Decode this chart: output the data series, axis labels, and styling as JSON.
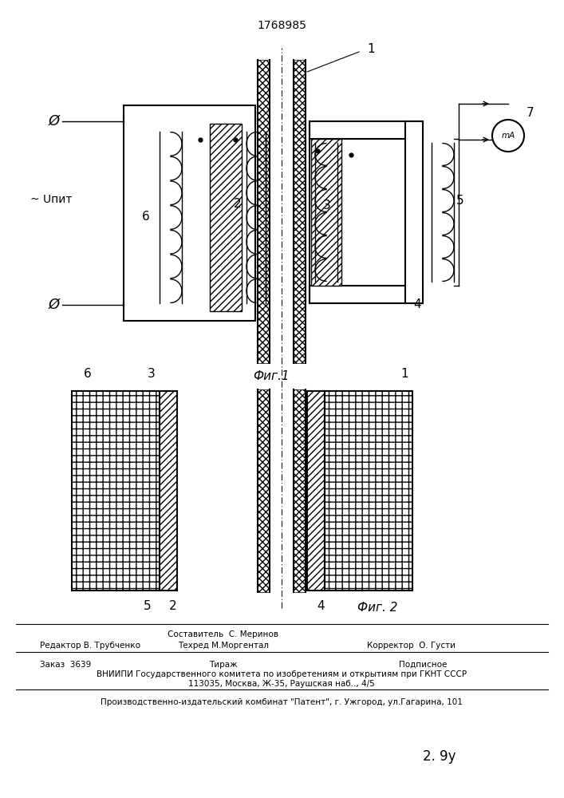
{
  "patent_number": "1768985",
  "fig1_caption": "Фиг.1",
  "fig2_caption": "Фиг. 2",
  "background_color": "#ffffff",
  "line_color": "#000000",
  "volt_label": "~ Uпит",
  "phi_label": "Ø",
  "footer_line1": "Составитель  С. Меринов",
  "footer_line2_left": "Редактор В. Трубченко",
  "footer_line2_mid": "Техред М.Моргентал",
  "footer_line2_right": "Корректор  О. Густи",
  "footer_line3_left": "Заказ  3639",
  "footer_line3_mid": "Тираж",
  "footer_line3_right": "Подписное",
  "footer_line4": "ВНИИПИ Государственного комитета по изобретениям и открытиям при ГКНТ СССР",
  "footer_line5": "113035, Москва, Ж-35, Раушская наб.., 4/5",
  "footer_line6": "Производственно-издательский комбинат \"Патент\", г. Ужгород, ул.Гагарина, 101",
  "handwritten": "2. 9у"
}
